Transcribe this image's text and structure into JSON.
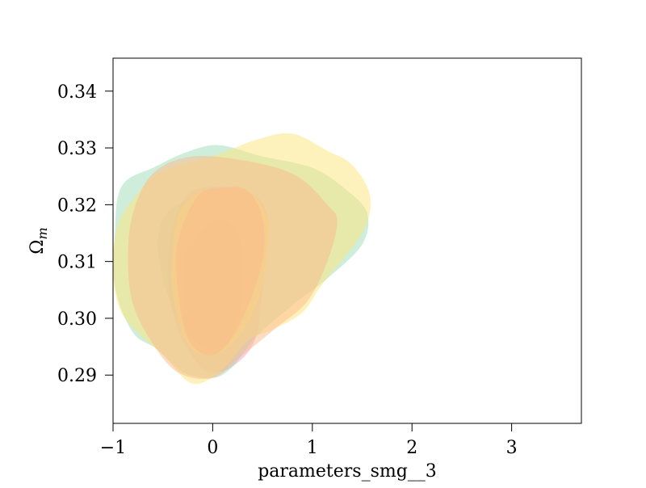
{
  "chart_data": {
    "type": "area",
    "title": "",
    "xlabel": "parameters_smg__3",
    "ylabel": "Ω",
    "ylabel_subscript": "m",
    "xlim": [
      -1.0,
      3.7
    ],
    "ylim": [
      0.2815,
      0.3458
    ],
    "xticks": [
      -1,
      0,
      1,
      2,
      3
    ],
    "xtick_labels": [
      "−1",
      "0",
      "1",
      "2",
      "3"
    ],
    "yticks": [
      0.29,
      0.3,
      0.31,
      0.32,
      0.33,
      0.34
    ],
    "ytick_labels": [
      "0.29",
      "0.30",
      "0.31",
      "0.32",
      "0.33",
      "0.34"
    ],
    "grid": false,
    "legend": "none",
    "opacity": 0.5,
    "series": [
      {
        "color": "#f4a6c6",
        "contours": [
          {
            "level": "95%",
            "points": [
              [
                -0.2,
                0.3225
              ],
              [
                0.3,
                0.3225
              ],
              [
                0.55,
                0.318
              ],
              [
                0.5,
                0.305
              ],
              [
                0.42,
                0.296
              ],
              [
                0.2,
                0.2915
              ],
              [
                0.0,
                0.2905
              ],
              [
                -0.15,
                0.292
              ],
              [
                -0.35,
                0.298
              ],
              [
                -0.45,
                0.307
              ],
              [
                -0.4,
                0.316
              ]
            ]
          },
          {
            "level": "68%",
            "points": [
              [
                0.05,
                0.3175
              ],
              [
                0.25,
                0.315
              ],
              [
                0.3,
                0.31
              ],
              [
                0.28,
                0.302
              ],
              [
                0.15,
                0.2955
              ],
              [
                0.0,
                0.2945
              ],
              [
                -0.25,
                0.2975
              ],
              [
                -0.3,
                0.305
              ],
              [
                -0.25,
                0.312
              ]
            ]
          }
        ]
      },
      {
        "color": "#9fdcb8",
        "contours": [
          {
            "level": "95%",
            "points": [
              [
                -0.85,
                0.3245
              ],
              [
                -0.6,
                0.3265
              ],
              [
                -0.3,
                0.329
              ],
              [
                0.05,
                0.3305
              ],
              [
                0.5,
                0.3285
              ],
              [
                1.0,
                0.3265
              ],
              [
                1.35,
                0.3225
              ],
              [
                1.55,
                0.3185
              ],
              [
                1.5,
                0.313
              ],
              [
                1.15,
                0.307
              ],
              [
                0.85,
                0.303
              ],
              [
                0.45,
                0.297
              ],
              [
                0.2,
                0.2915
              ],
              [
                0.0,
                0.2895
              ],
              [
                -0.3,
                0.2905
              ],
              [
                -0.55,
                0.2945
              ],
              [
                -0.8,
                0.2975
              ],
              [
                -0.98,
                0.3055
              ],
              [
                -0.98,
                0.3155
              ],
              [
                -0.95,
                0.3215
              ]
            ]
          },
          {
            "level": "68%",
            "points": [
              [
                -0.3,
                0.3205
              ],
              [
                0.0,
                0.3225
              ],
              [
                0.3,
                0.3215
              ],
              [
                0.5,
                0.3175
              ],
              [
                0.55,
                0.3125
              ],
              [
                0.45,
                0.3045
              ],
              [
                0.25,
                0.2975
              ],
              [
                0.0,
                0.2945
              ],
              [
                -0.25,
                0.2965
              ],
              [
                -0.45,
                0.304
              ],
              [
                -0.55,
                0.312
              ],
              [
                -0.5,
                0.3175
              ]
            ]
          }
        ]
      },
      {
        "color": "#fde67a",
        "contours": [
          {
            "level": "95%",
            "points": [
              [
                -0.5,
                0.326
              ],
              [
                0.0,
                0.3285
              ],
              [
                0.45,
                0.3315
              ],
              [
                0.8,
                0.3325
              ],
              [
                1.15,
                0.3295
              ],
              [
                1.4,
                0.327
              ],
              [
                1.58,
                0.3215
              ],
              [
                1.5,
                0.315
              ],
              [
                1.1,
                0.306
              ],
              [
                0.9,
                0.301
              ],
              [
                0.6,
                0.298
              ],
              [
                0.35,
                0.296
              ],
              [
                0.1,
                0.291
              ],
              [
                -0.2,
                0.2885
              ],
              [
                -0.5,
                0.2935
              ],
              [
                -0.9,
                0.3005
              ],
              [
                -1.0,
                0.3085
              ],
              [
                -0.95,
                0.3165
              ],
              [
                -0.75,
                0.322
              ]
            ]
          },
          {
            "level": "68%",
            "points": [
              [
                -0.2,
                0.3215
              ],
              [
                0.05,
                0.3225
              ],
              [
                0.35,
                0.3225
              ],
              [
                0.55,
                0.3175
              ],
              [
                0.55,
                0.311
              ],
              [
                0.45,
                0.303
              ],
              [
                0.25,
                0.2965
              ],
              [
                0.0,
                0.2935
              ],
              [
                -0.25,
                0.2955
              ],
              [
                -0.4,
                0.304
              ],
              [
                -0.4,
                0.3125
              ],
              [
                -0.35,
                0.318
              ]
            ]
          }
        ]
      },
      {
        "color": "#fcb98b",
        "contours": [
          {
            "level": "95%",
            "points": [
              [
                -0.6,
                0.3255
              ],
              [
                -0.2,
                0.3285
              ],
              [
                0.4,
                0.3275
              ],
              [
                0.85,
                0.325
              ],
              [
                1.15,
                0.32
              ],
              [
                1.25,
                0.317
              ],
              [
                1.15,
                0.31
              ],
              [
                0.95,
                0.303
              ],
              [
                0.65,
                0.2985
              ],
              [
                0.3,
                0.2935
              ],
              [
                0.0,
                0.2895
              ],
              [
                -0.35,
                0.2905
              ],
              [
                -0.6,
                0.2955
              ],
              [
                -0.8,
                0.3025
              ],
              [
                -0.85,
                0.3105
              ],
              [
                -0.8,
                0.3185
              ]
            ]
          },
          {
            "level": "68%",
            "points": [
              [
                -0.15,
                0.3215
              ],
              [
                0.1,
                0.323
              ],
              [
                0.35,
                0.3225
              ],
              [
                0.5,
                0.3175
              ],
              [
                0.5,
                0.3105
              ],
              [
                0.35,
                0.302
              ],
              [
                0.15,
                0.2955
              ],
              [
                -0.05,
                0.2935
              ],
              [
                -0.25,
                0.2965
              ],
              [
                -0.35,
                0.305
              ],
              [
                -0.35,
                0.3135
              ]
            ]
          }
        ]
      }
    ]
  }
}
